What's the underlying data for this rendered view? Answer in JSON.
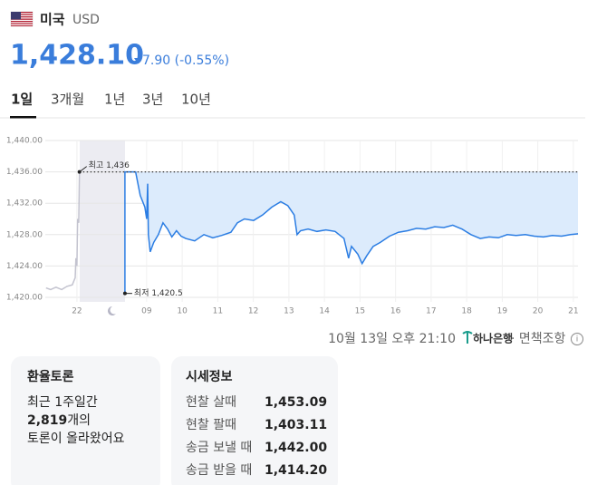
{
  "header": {
    "country": "미국",
    "currency": "USD",
    "price": "1,428.10",
    "change": "7.90 (-0.55%)"
  },
  "tabs": [
    "1일",
    "3개월",
    "1년",
    "3년",
    "10년"
  ],
  "chart_data": {
    "type": "line",
    "xlim": [
      30.15,
      45.13
    ],
    "ylim": [
      1420,
      1440
    ],
    "xticks": [
      {
        "value": 31.04,
        "label": "22"
      },
      {
        "value": 33,
        "label": "09"
      },
      {
        "value": 34,
        "label": "10"
      },
      {
        "value": 35,
        "label": "11"
      },
      {
        "value": 36,
        "label": "12"
      },
      {
        "value": 37,
        "label": "13"
      },
      {
        "value": 38,
        "label": "14"
      },
      {
        "value": 39,
        "label": "15"
      },
      {
        "value": 40,
        "label": "16"
      },
      {
        "value": 41,
        "label": "17"
      },
      {
        "value": 42,
        "label": "18"
      },
      {
        "value": 43,
        "label": "19"
      },
      {
        "value": 44,
        "label": "20"
      },
      {
        "value": 45,
        "label": "21"
      }
    ],
    "yticks": [
      {
        "value": 1420,
        "label": "1,420.00"
      },
      {
        "value": 1424,
        "label": "1,424.00"
      },
      {
        "value": 1428,
        "label": "1,428.00"
      },
      {
        "value": 1432,
        "label": "1,432.00"
      },
      {
        "value": 1436,
        "label": "1,436.00"
      },
      {
        "value": 1440,
        "label": "1,440.00"
      }
    ],
    "grid": true,
    "series": [
      {
        "color": "#c3c3cf",
        "x": [
          30.17,
          30.3,
          30.45,
          30.61,
          30.76,
          30.91,
          30.99,
          31.01,
          31.04,
          31.06,
          31.09,
          31.11
        ],
        "values": [
          1421.2,
          1421.0,
          1421.3,
          1421.0,
          1421.4,
          1421.6,
          1422.5,
          1425,
          1424,
          1430,
          1429.5,
          1436
        ]
      },
      {
        "color": "#2b7de3",
        "fill": "#dcebfc",
        "x": [
          32.39,
          32.39,
          32.39,
          32.69,
          32.82,
          32.95,
          33.0,
          33.03,
          33.05,
          33.1,
          33.2,
          33.33,
          33.46,
          33.59,
          33.71,
          33.84,
          33.97,
          34.1,
          34.35,
          34.61,
          34.86,
          35.11,
          35.37,
          35.55,
          35.75,
          36.01,
          36.26,
          36.52,
          36.77,
          36.97,
          37.15,
          37.23,
          37.33,
          37.54,
          37.79,
          38.04,
          38.3,
          38.55,
          38.68,
          38.76,
          38.94,
          39.06,
          39.19,
          39.37,
          39.57,
          39.83,
          40.08,
          40.34,
          40.59,
          40.85,
          41.1,
          41.36,
          41.61,
          41.87,
          42.12,
          42.38,
          42.63,
          42.89,
          43.14,
          43.39,
          43.65,
          43.9,
          44.16,
          44.41,
          44.67,
          44.92,
          45.13
        ],
        "values": [
          1436,
          1420.5,
          1436,
          1436,
          1433,
          1431.5,
          1430,
          1434.5,
          1428,
          1425.8,
          1427,
          1428,
          1429.5,
          1428.7,
          1427.7,
          1428.5,
          1427.8,
          1427.5,
          1427.2,
          1428,
          1427.6,
          1427.9,
          1428.3,
          1429.5,
          1430,
          1429.8,
          1430.5,
          1431.5,
          1432.2,
          1431.7,
          1430.5,
          1428,
          1428.5,
          1428.7,
          1428.4,
          1428.6,
          1428.4,
          1427.5,
          1425,
          1426.5,
          1425.5,
          1424.3,
          1425.3,
          1426.5,
          1427,
          1427.8,
          1428.3,
          1428.5,
          1428.8,
          1428.7,
          1429,
          1428.9,
          1429.2,
          1428.7,
          1428,
          1427.5,
          1427.7,
          1427.6,
          1428,
          1427.9,
          1428,
          1427.8,
          1427.7,
          1427.9,
          1427.8,
          1428,
          1428.1
        ]
      }
    ],
    "annotations": [
      {
        "label": "최고 1,436",
        "value": 1436,
        "x": 31.11
      },
      {
        "label": "최저 1,420.5",
        "value": 1420.5,
        "x": 32.39
      }
    ]
  },
  "footer": {
    "timestamp": "10월 13일 오후 21:10",
    "bank": "하나은행",
    "disclaimer": "· 면책조항"
  },
  "discussion": {
    "title": "환율토론",
    "line1": "최근 1주일간",
    "count": "2,819",
    "count_suffix": "개의",
    "line3": "토론이 올라왔어요"
  },
  "quote": {
    "title": "시세정보",
    "rows": [
      [
        "현찰 살때",
        "1,453.09"
      ],
      [
        "현찰 팔때",
        "1,403.11"
      ],
      [
        "송금 보낼 때",
        "1,442.00"
      ],
      [
        "송금 받을 때",
        "1,414.20"
      ]
    ]
  }
}
